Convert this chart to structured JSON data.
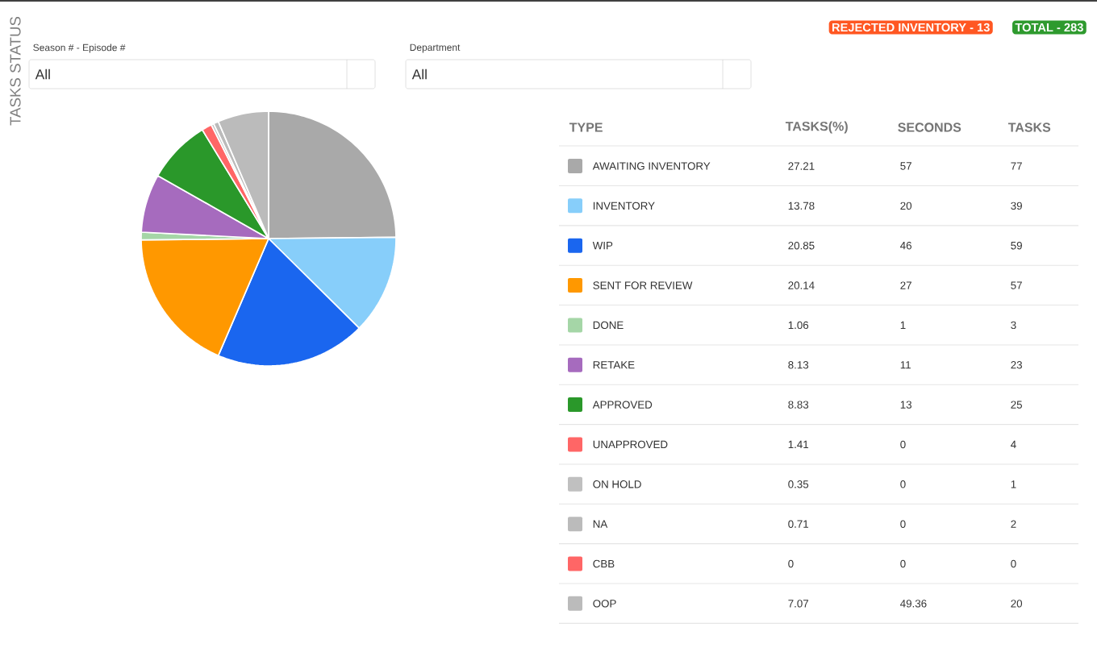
{
  "chart_data": [
    {
      "type": "pie",
      "title": "TASKS STATUS",
      "legend": "right",
      "legend_title": "TYPE",
      "value_labels": [
        "27.21",
        "13.78",
        "20.85",
        "20.14",
        "1.06",
        "8.13",
        "8.83",
        "1.41",
        "0.35",
        "0.71",
        "0",
        "7.07"
      ],
      "categories": [
        "AWAITING INVENTORY",
        "INVENTORY",
        "WIP",
        "SENT FOR REVIEW",
        "DONE",
        "RETAKE",
        "APPROVED",
        "UNAPPROVED",
        "ON HOLD",
        "NA",
        "CBB",
        "OOP"
      ],
      "values": [
        27.21,
        13.78,
        20.85,
        20.14,
        1.06,
        8.13,
        8.83,
        1.41,
        0.35,
        0.71,
        0,
        7.07
      ],
      "colors": [
        "#a9a9a9",
        "#87cefa",
        "#1a66ef",
        "#ff9800",
        "#a5d6a7",
        "#a66bbe",
        "#2a982a",
        "#ff6666",
        "#c0c0c0",
        "#bbbbbb",
        "#ff6666",
        "#bbbbbb"
      ],
      "annotations": [
        "Season # - Episode #",
        "All",
        "Department",
        "All",
        "REJECTED INVENTORY - 13",
        "TOTAL - 283",
        "TASKS(%)"
      ]
    },
    {
      "type": "other",
      "annotations": [
        "SECONDS",
        "TASKS",
        "57",
        "77",
        "20",
        "39",
        "46",
        "59",
        "27",
        "57",
        "1",
        "3",
        "11",
        "23",
        "13",
        "25",
        "0",
        "4",
        "0",
        "1",
        "0",
        "2",
        "0",
        "0",
        "49.36",
        "20"
      ]
    }
  ]
}
